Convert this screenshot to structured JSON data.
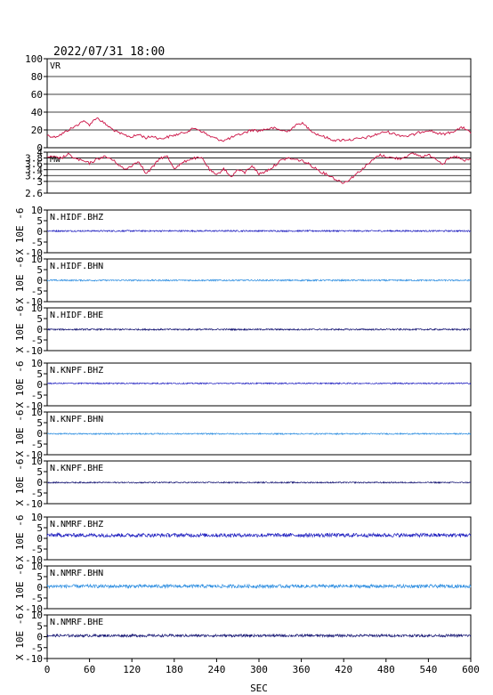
{
  "title": "2022/07/31 18:00",
  "xaxis": {
    "label": "SEC",
    "ticks": [
      0,
      60,
      120,
      180,
      240,
      300,
      360,
      420,
      480,
      540,
      600
    ],
    "range": [
      0,
      600
    ]
  },
  "colors": {
    "vr": "#cc1144",
    "mw": "#cc1144",
    "bhz": "#2020c0",
    "bhn": "#2a8ce0",
    "bhe": "#101070",
    "grid": "#000000"
  },
  "chart_data": {
    "type": "line",
    "x_range": [
      0,
      600
    ],
    "panels": [
      {
        "id": "vr",
        "label": "VR",
        "ylim": [
          0,
          100
        ],
        "yticks": [
          0,
          20,
          40,
          60,
          80,
          100
        ],
        "grid": true,
        "color_key": "vr",
        "x": [
          0,
          10,
          20,
          30,
          40,
          50,
          60,
          70,
          80,
          90,
          100,
          110,
          120,
          130,
          140,
          150,
          160,
          170,
          180,
          190,
          200,
          210,
          220,
          230,
          240,
          250,
          260,
          270,
          280,
          290,
          300,
          310,
          320,
          330,
          340,
          350,
          360,
          370,
          380,
          390,
          400,
          410,
          420,
          430,
          440,
          450,
          460,
          470,
          480,
          490,
          500,
          510,
          520,
          530,
          540,
          550,
          560,
          570,
          580,
          590,
          600
        ],
        "values": [
          14,
          12,
          15,
          20,
          24,
          30,
          26,
          34,
          28,
          22,
          17,
          14,
          12,
          15,
          11,
          13,
          10,
          12,
          14,
          16,
          19,
          22,
          18,
          13,
          10,
          8,
          11,
          14,
          17,
          20,
          19,
          21,
          22,
          20,
          18,
          24,
          28,
          22,
          16,
          13,
          10,
          8,
          9,
          9,
          10,
          11,
          13,
          16,
          18,
          16,
          14,
          13,
          15,
          18,
          20,
          17,
          15,
          17,
          20,
          23,
          16
        ]
      },
      {
        "id": "mw",
        "label": "Mw",
        "ylim": [
          2.6,
          4.0
        ],
        "yticks": [
          2.6,
          3.0,
          3.2,
          3.4,
          3.6,
          3.8,
          4.0
        ],
        "grid": true,
        "color_key": "mw",
        "x": [
          0,
          10,
          20,
          30,
          40,
          50,
          60,
          70,
          80,
          90,
          100,
          110,
          120,
          130,
          140,
          150,
          160,
          170,
          180,
          190,
          200,
          210,
          220,
          230,
          240,
          250,
          260,
          270,
          280,
          290,
          300,
          310,
          320,
          330,
          340,
          350,
          360,
          370,
          380,
          390,
          400,
          410,
          420,
          430,
          440,
          450,
          460,
          470,
          480,
          490,
          500,
          510,
          520,
          530,
          540,
          550,
          560,
          570,
          580,
          590,
          600
        ],
        "values": [
          3.85,
          3.82,
          3.8,
          3.92,
          3.78,
          3.7,
          3.62,
          3.75,
          3.85,
          3.78,
          3.6,
          3.4,
          3.55,
          3.7,
          3.25,
          3.5,
          3.8,
          3.85,
          3.45,
          3.6,
          3.75,
          3.8,
          3.78,
          3.4,
          3.2,
          3.45,
          3.15,
          3.4,
          3.3,
          3.55,
          3.25,
          3.35,
          3.5,
          3.7,
          3.8,
          3.75,
          3.72,
          3.6,
          3.45,
          3.3,
          3.2,
          3.05,
          2.95,
          3.1,
          3.3,
          3.5,
          3.7,
          3.9,
          3.85,
          3.8,
          3.78,
          3.88,
          3.95,
          3.85,
          3.9,
          3.8,
          3.6,
          3.78,
          3.85,
          3.7,
          3.75
        ]
      },
      {
        "id": "hidf-bhz",
        "label": "N.HIDF.BHZ",
        "ylabel": "X 10E -6",
        "ylim": [
          -10,
          10
        ],
        "yticks": [
          -10,
          -5,
          0,
          5,
          10
        ],
        "color_key": "bhz",
        "mean": 0.2,
        "amplitude": 0.35
      },
      {
        "id": "hidf-bhn",
        "label": "N.HIDF.BHN",
        "ylabel": "X 10E -6",
        "ylim": [
          -10,
          10
        ],
        "yticks": [
          -10,
          -5,
          0,
          5,
          10
        ],
        "color_key": "bhn",
        "mean": 0.0,
        "amplitude": 0.35
      },
      {
        "id": "hidf-bhe",
        "label": "N.HIDF.BHE",
        "ylabel": "X 10E -6",
        "ylim": [
          -10,
          10
        ],
        "yticks": [
          -10,
          -5,
          0,
          5,
          10
        ],
        "color_key": "bhe",
        "mean": -0.1,
        "amplitude": 0.35
      },
      {
        "id": "knpf-bhz",
        "label": "N.KNPF.BHZ",
        "ylabel": "X 10E -6",
        "ylim": [
          -10,
          10
        ],
        "yticks": [
          -10,
          -5,
          0,
          5,
          10
        ],
        "color_key": "bhz",
        "mean": 0.5,
        "amplitude": 0.3
      },
      {
        "id": "knpf-bhn",
        "label": "N.KNPF.BHN",
        "ylabel": "X 10E -6",
        "ylim": [
          -10,
          10
        ],
        "yticks": [
          -10,
          -5,
          0,
          5,
          10
        ],
        "color_key": "bhn",
        "mean": -0.2,
        "amplitude": 0.3
      },
      {
        "id": "knpf-bhe",
        "label": "N.KNPF.BHE",
        "ylabel": "X 10E -6",
        "ylim": [
          -10,
          10
        ],
        "yticks": [
          -10,
          -5,
          0,
          5,
          10
        ],
        "color_key": "bhe",
        "mean": -0.1,
        "amplitude": 0.3
      },
      {
        "id": "nmrf-bhz",
        "label": "N.NMRF.BHZ",
        "ylabel": "X 10E -6",
        "ylim": [
          -10,
          10
        ],
        "yticks": [
          -10,
          -5,
          0,
          5,
          10
        ],
        "color_key": "bhz",
        "mean": 1.5,
        "amplitude": 0.9
      },
      {
        "id": "nmrf-bhn",
        "label": "N.NMRF.BHN",
        "ylabel": "X 10E -6",
        "ylim": [
          -10,
          10
        ],
        "yticks": [
          -10,
          -5,
          0,
          5,
          10
        ],
        "color_key": "bhn",
        "mean": 0.5,
        "amplitude": 0.8
      },
      {
        "id": "nmrf-bhe",
        "label": "N.NMRF.BHE",
        "ylabel": "X 10E -6",
        "ylim": [
          -10,
          10
        ],
        "yticks": [
          -10,
          -5,
          0,
          5,
          10
        ],
        "color_key": "bhe",
        "mean": 0.5,
        "amplitude": 0.6
      }
    ]
  }
}
